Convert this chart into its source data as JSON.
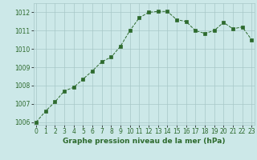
{
  "x": [
    0,
    1,
    2,
    3,
    4,
    5,
    6,
    7,
    8,
    9,
    10,
    11,
    12,
    13,
    14,
    15,
    16,
    17,
    18,
    19,
    20,
    21,
    22,
    23
  ],
  "y": [
    1006.0,
    1006.6,
    1007.1,
    1007.7,
    1007.9,
    1008.35,
    1008.8,
    1009.3,
    1009.55,
    1010.15,
    1011.0,
    1011.7,
    1012.0,
    1012.05,
    1012.05,
    1011.6,
    1011.5,
    1011.0,
    1010.85,
    1011.0,
    1011.45,
    1011.1,
    1011.2,
    1010.5
  ],
  "line_color": "#2d6a2d",
  "marker_color": "#2d6a2d",
  "bg_color": "#cce8e8",
  "grid_color": "#a8c8c8",
  "xlabel": "Graphe pression niveau de la mer (hPa)",
  "xlabel_color": "#2d6a2d",
  "tick_color": "#2d6a2d",
  "ylim_min": 1006,
  "ylim_max": 1012.5,
  "yticks": [
    1006,
    1007,
    1008,
    1009,
    1010,
    1011,
    1012
  ],
  "xtick_labels": [
    "0",
    "1",
    "2",
    "3",
    "4",
    "5",
    "6",
    "7",
    "8",
    "9",
    "10",
    "11",
    "12",
    "13",
    "14",
    "15",
    "16",
    "17",
    "18",
    "19",
    "20",
    "21",
    "22",
    "23"
  ],
  "tick_fontsize": 5.5,
  "xlabel_fontsize": 6.5
}
